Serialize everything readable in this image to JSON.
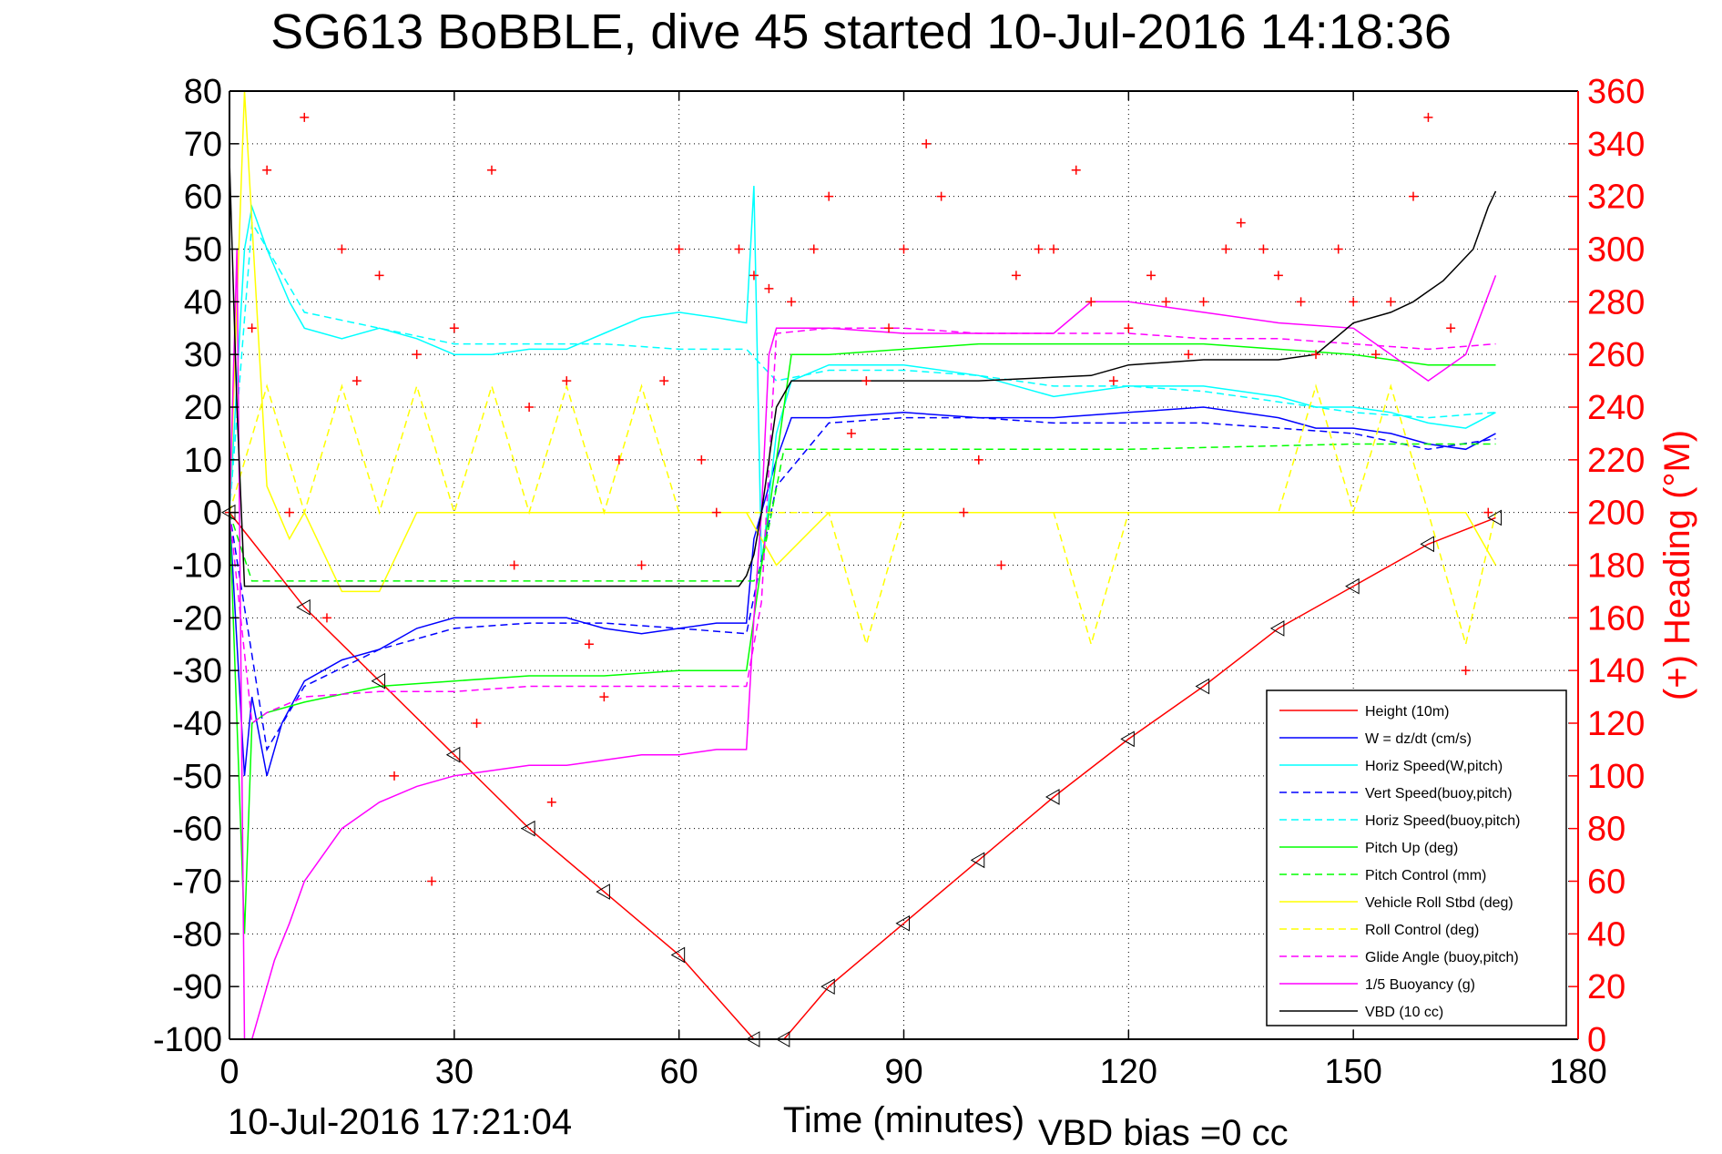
{
  "chart_data": {
    "type": "line",
    "title": "SG613 BoBBLE, dive 45 started 10-Jul-2016 14:18:36",
    "xlabel": "Time (minutes)",
    "ylabel_right": "(+) Heading (°M)",
    "xlim": [
      0,
      180
    ],
    "ylim_left": [
      -100,
      80
    ],
    "ylim_right": [
      0,
      360
    ],
    "x_ticks": [
      "0",
      "30",
      "60",
      "90",
      "120",
      "150",
      "180"
    ],
    "y_ticks_left": [
      "80",
      "70",
      "60",
      "50",
      "40",
      "30",
      "20",
      "10",
      "0",
      "-10",
      "-20",
      "-30",
      "-40",
      "-50",
      "-60",
      "-70",
      "-80",
      "-90",
      "-100"
    ],
    "y_ticks_right": [
      "360",
      "340",
      "320",
      "300",
      "280",
      "260",
      "240",
      "220",
      "200",
      "180",
      "160",
      "140",
      "120",
      "100",
      "80",
      "60",
      "40",
      "20",
      "0"
    ],
    "grid": true,
    "legend_position": "bottom-right",
    "timestamp": "10-Jul-2016 17:21:04",
    "vbd_bias": "VBD bias =0 cc",
    "series": [
      {
        "name": "Height (10m)",
        "color": "#ff0000",
        "style": "solid",
        "x": [
          0,
          10,
          20,
          30,
          40,
          50,
          60,
          70,
          74,
          80,
          90,
          100,
          110,
          120,
          130,
          140,
          150,
          160,
          169
        ],
        "y": [
          0,
          -18,
          -32,
          -46,
          -60,
          -72,
          -84,
          -100,
          -100,
          -90,
          -78,
          -66,
          -54,
          -43,
          -33,
          -22,
          -14,
          -6,
          -1
        ]
      },
      {
        "name": "W = dz/dt (cm/s)",
        "color": "#0000ff",
        "style": "solid",
        "x": [
          0,
          2,
          3,
          5,
          7,
          10,
          15,
          20,
          25,
          30,
          35,
          40,
          45,
          50,
          55,
          60,
          65,
          69,
          70,
          73,
          75,
          80,
          90,
          100,
          110,
          120,
          130,
          140,
          145,
          150,
          155,
          160,
          165,
          169
        ],
        "y": [
          0,
          -50,
          -35,
          -50,
          -40,
          -32,
          -28,
          -26,
          -22,
          -20,
          -20,
          -20,
          -20,
          -22,
          -23,
          -22,
          -21,
          -21,
          -5,
          10,
          18,
          18,
          19,
          18,
          18,
          19,
          20,
          18,
          16,
          16,
          15,
          13,
          12,
          15
        ]
      },
      {
        "name": "Horiz Speed(W,pitch)",
        "color": "#00ffff",
        "style": "solid",
        "x": [
          0,
          2,
          3,
          5,
          8,
          10,
          15,
          20,
          25,
          30,
          35,
          40,
          45,
          50,
          55,
          60,
          65,
          69,
          70,
          71,
          73,
          75,
          80,
          90,
          100,
          110,
          120,
          130,
          140,
          145,
          150,
          155,
          160,
          165,
          169
        ],
        "y": [
          0,
          50,
          58,
          50,
          40,
          35,
          33,
          35,
          33,
          30,
          30,
          31,
          31,
          34,
          37,
          38,
          37,
          36,
          62,
          -10,
          15,
          25,
          28,
          28,
          26,
          22,
          24,
          24,
          22,
          20,
          20,
          19,
          17,
          16,
          19
        ]
      },
      {
        "name": "Vert Speed(buoy,pitch)",
        "color": "#0000ff",
        "style": "dashed",
        "x": [
          0,
          5,
          10,
          20,
          30,
          40,
          50,
          60,
          69,
          73,
          80,
          90,
          100,
          110,
          120,
          130,
          140,
          150,
          160,
          169
        ],
        "y": [
          0,
          -45,
          -33,
          -26,
          -22,
          -21,
          -21,
          -22,
          -23,
          5,
          17,
          18,
          18,
          17,
          17,
          17,
          16,
          15,
          12,
          14
        ]
      },
      {
        "name": "Horiz Speed(buoy,pitch)",
        "color": "#00ffff",
        "style": "dashed",
        "x": [
          0,
          3,
          10,
          20,
          30,
          40,
          50,
          60,
          69,
          73,
          80,
          90,
          100,
          110,
          120,
          130,
          140,
          150,
          160,
          169
        ],
        "y": [
          0,
          55,
          38,
          35,
          32,
          32,
          32,
          31,
          31,
          25,
          27,
          27,
          26,
          24,
          24,
          23,
          21,
          19,
          18,
          19
        ]
      },
      {
        "name": "Pitch Up (deg)",
        "color": "#00ff00",
        "style": "solid",
        "x": [
          0,
          2,
          3,
          5,
          10,
          20,
          30,
          40,
          50,
          60,
          69,
          73,
          75,
          80,
          90,
          100,
          110,
          120,
          130,
          140,
          150,
          160,
          169
        ],
        "y": [
          0,
          -80,
          -40,
          -38,
          -36,
          -33,
          -32,
          -31,
          -31,
          -30,
          -30,
          10,
          30,
          30,
          31,
          32,
          32,
          32,
          32,
          31,
          30,
          28,
          28
        ]
      },
      {
        "name": "Pitch Control (mm)",
        "color": "#00ff00",
        "style": "dashed",
        "x": [
          0,
          3,
          70,
          71,
          74,
          120,
          150,
          169
        ],
        "y": [
          0,
          -13,
          -13,
          -10,
          12,
          12,
          13,
          13
        ]
      },
      {
        "name": "Vehicle Roll Stbd (deg)",
        "color": "#ffff00",
        "style": "solid",
        "x": [
          0,
          2,
          5,
          8,
          10,
          15,
          20,
          25,
          30,
          35,
          40,
          45,
          50,
          55,
          60,
          65,
          69,
          73,
          80,
          90,
          100,
          110,
          120,
          130,
          140,
          145,
          150,
          155,
          160,
          165,
          169
        ],
        "y": [
          0,
          80,
          5,
          -5,
          0,
          -15,
          -15,
          0,
          0,
          0,
          0,
          0,
          0,
          0,
          0,
          0,
          0,
          -10,
          0,
          0,
          0,
          0,
          0,
          0,
          0,
          0,
          0,
          0,
          0,
          0,
          -10
        ]
      },
      {
        "name": "Roll Control (deg)",
        "color": "#ffff00",
        "style": "dashed",
        "x": [
          0,
          5,
          10,
          15,
          20,
          25,
          30,
          35,
          40,
          45,
          50,
          55,
          60,
          65,
          70,
          80,
          85,
          90,
          95,
          100,
          105,
          110,
          115,
          120,
          130,
          140,
          145,
          150,
          155,
          160,
          165,
          169
        ],
        "y": [
          0,
          24,
          0,
          24,
          0,
          24,
          0,
          24,
          0,
          24,
          0,
          24,
          0,
          0,
          0,
          0,
          -25,
          0,
          0,
          0,
          0,
          0,
          -25,
          0,
          0,
          0,
          24,
          0,
          24,
          0,
          -25,
          0
        ]
      },
      {
        "name": "Glide Angle (buoy,pitch)",
        "color": "#ff00ff",
        "style": "dashed",
        "x": [
          0,
          3,
          5,
          10,
          20,
          30,
          40,
          50,
          60,
          69,
          71,
          73,
          80,
          90,
          100,
          110,
          120,
          130,
          140,
          150,
          160,
          169
        ],
        "y": [
          0,
          -40,
          -38,
          -35,
          -34,
          -34,
          -33,
          -33,
          -33,
          -33,
          -17,
          34,
          35,
          35,
          34,
          34,
          34,
          33,
          33,
          32,
          31,
          32
        ]
      },
      {
        "name": "1/5 Buoyancy (g)",
        "color": "#ff00ff",
        "style": "solid",
        "x": [
          0,
          1,
          2,
          3,
          4,
          6,
          8,
          10,
          15,
          20,
          25,
          30,
          35,
          40,
          45,
          50,
          55,
          60,
          65,
          69,
          70,
          71,
          72,
          73,
          80,
          90,
          100,
          110,
          115,
          120,
          130,
          140,
          150,
          160,
          165,
          169
        ],
        "y": [
          0,
          50,
          -100,
          -100,
          -95,
          -85,
          -78,
          -70,
          -60,
          -55,
          -52,
          -50,
          -49,
          -48,
          -48,
          -47,
          -46,
          -46,
          -45,
          -45,
          -20,
          0,
          30,
          35,
          35,
          34,
          34,
          34,
          40,
          40,
          38,
          36,
          35,
          25,
          30,
          45
        ]
      },
      {
        "name": "VBD (10 cc)",
        "color": "#000000",
        "style": "solid",
        "x": [
          0,
          1,
          2,
          3,
          68,
          69,
          70,
          71,
          72,
          73,
          75,
          100,
          115,
          120,
          130,
          140,
          145,
          150,
          155,
          158,
          160,
          162,
          164,
          166,
          168,
          169
        ],
        "y": [
          67,
          20,
          -14,
          -14,
          -14,
          -12,
          -8,
          0,
          10,
          20,
          25,
          25,
          26,
          28,
          29,
          29,
          30,
          36,
          38,
          40,
          42,
          44,
          47,
          50,
          58,
          61
        ]
      },
      {
        "name": "(+) Heading",
        "color": "#ff0000",
        "style": "markers",
        "axis": "right",
        "x": [
          0,
          3,
          5,
          8,
          10,
          13,
          15,
          17,
          20,
          22,
          25,
          27,
          30,
          33,
          35,
          38,
          40,
          43,
          45,
          48,
          50,
          52,
          55,
          58,
          60,
          63,
          65,
          68,
          70,
          72,
          75,
          78,
          80,
          83,
          85,
          88,
          90,
          93,
          95,
          98,
          100,
          103,
          105,
          108,
          110,
          113,
          115,
          118,
          120,
          123,
          125,
          128,
          130,
          133,
          135,
          138,
          140,
          143,
          145,
          148,
          150,
          153,
          155,
          158,
          160,
          163,
          165,
          168
        ],
        "y": [
          200,
          270,
          330,
          200,
          350,
          160,
          300,
          250,
          290,
          100,
          260,
          60,
          270,
          120,
          330,
          180,
          240,
          90,
          250,
          150,
          130,
          220,
          180,
          250,
          300,
          220,
          200,
          300,
          290,
          285,
          280,
          300,
          320,
          230,
          250,
          270,
          300,
          340,
          320,
          200,
          220,
          180,
          290,
          300,
          300,
          330,
          280,
          250,
          270,
          290,
          280,
          260,
          280,
          300,
          310,
          300,
          290,
          280,
          260,
          300,
          280,
          260,
          280,
          320,
          350,
          270,
          140,
          200
        ]
      }
    ]
  }
}
